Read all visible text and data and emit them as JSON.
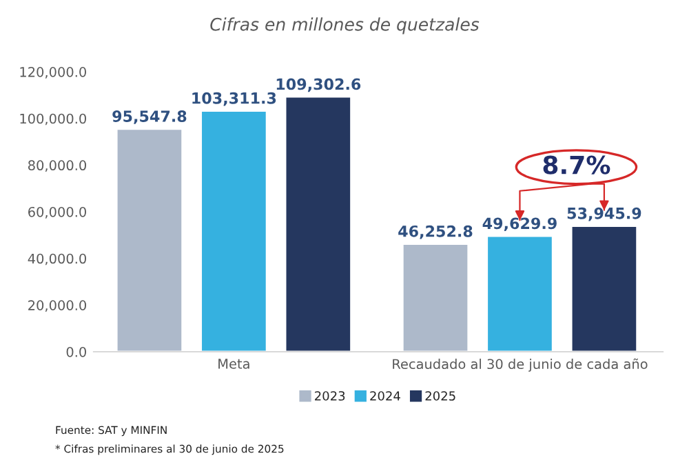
{
  "chart_data": {
    "type": "bar",
    "title": "Cifras en millones de quetzales",
    "categories": [
      "Meta",
      "Recaudado al 30 de junio de cada año"
    ],
    "series": [
      {
        "name": "2023",
        "color": "#adb9ca",
        "values": [
          95547.8,
          46252.8
        ],
        "value_labels": [
          "95,547.8",
          "46,252.8"
        ]
      },
      {
        "name": "2024",
        "color": "#35b1e0",
        "values": [
          103311.3,
          49629.9
        ],
        "value_labels": [
          "103,311.3",
          "49,629.9"
        ]
      },
      {
        "name": "2025",
        "color": "#25375f",
        "values": [
          109302.6,
          53945.9
        ],
        "value_labels": [
          "109,302.6",
          "53,945.9"
        ]
      }
    ],
    "ylim": [
      0,
      120000
    ],
    "yticks": [
      {
        "value": 0,
        "label": "0.0"
      },
      {
        "value": 20000,
        "label": "20,000.0"
      },
      {
        "value": 40000,
        "label": "40,000.0"
      },
      {
        "value": 60000,
        "label": "60,000.0"
      },
      {
        "value": 80000,
        "label": "80,000.0"
      },
      {
        "value": 100000,
        "label": "100,000.0"
      },
      {
        "value": 120000,
        "label": "120,000.0"
      }
    ],
    "grid": false,
    "legend": "bottom",
    "annotations": [
      "8.7%",
      "Fuente: SAT y MINFIN",
      "* Cifras preliminares al 30 de junio de 2025"
    ]
  }
}
